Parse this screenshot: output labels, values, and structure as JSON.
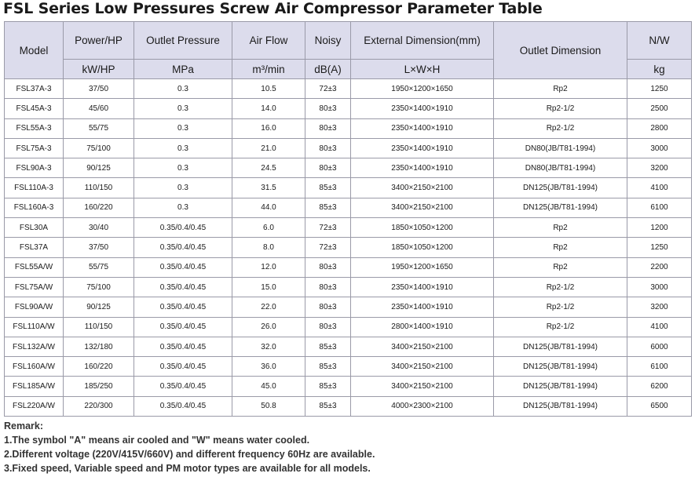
{
  "title": "FSL Series Low Pressures Screw Air Compressor Parameter Table",
  "table": {
    "header_top": [
      "Model",
      "Power/HP",
      "Outlet Pressure",
      "Air Flow",
      "Noisy",
      "External Dimension(mm)",
      "Outlet Dimension",
      "N/W"
    ],
    "header_bottom": [
      "kW/HP",
      "MPa",
      "m³/min",
      "dB(A)",
      "L×W×H",
      "kg"
    ],
    "rows": [
      [
        "FSL37A-3",
        "37/50",
        "0.3",
        "10.5",
        "72±3",
        "1950×1200×1650",
        "Rp2",
        "1250"
      ],
      [
        "FSL45A-3",
        "45/60",
        "0.3",
        "14.0",
        "80±3",
        "2350×1400×1910",
        "Rp2-1/2",
        "2500"
      ],
      [
        "FSL55A-3",
        "55/75",
        "0.3",
        "16.0",
        "80±3",
        "2350×1400×1910",
        "Rp2-1/2",
        "2800"
      ],
      [
        "FSL75A-3",
        "75/100",
        "0.3",
        "21.0",
        "80±3",
        "2350×1400×1910",
        "DN80(JB/T81-1994)",
        "3000"
      ],
      [
        "FSL90A-3",
        "90/125",
        "0.3",
        "24.5",
        "80±3",
        "2350×1400×1910",
        "DN80(JB/T81-1994)",
        "3200"
      ],
      [
        "FSL110A-3",
        "110/150",
        "0.3",
        "31.5",
        "85±3",
        "3400×2150×2100",
        "DN125(JB/T81-1994)",
        "4100"
      ],
      [
        "FSL160A-3",
        "160/220",
        "0.3",
        "44.0",
        "85±3",
        "3400×2150×2100",
        "DN125(JB/T81-1994)",
        "6100"
      ],
      [
        "FSL30A",
        "30/40",
        "0.35/0.4/0.45",
        "6.0",
        "72±3",
        "1850×1050×1200",
        "Rp2",
        "1200"
      ],
      [
        "FSL37A",
        "37/50",
        "0.35/0.4/0.45",
        "8.0",
        "72±3",
        "1850×1050×1200",
        "Rp2",
        "1250"
      ],
      [
        "FSL55A/W",
        "55/75",
        "0.35/0.4/0.45",
        "12.0",
        "80±3",
        "1950×1200×1650",
        "Rp2",
        "2200"
      ],
      [
        "FSL75A/W",
        "75/100",
        "0.35/0.4/0.45",
        "15.0",
        "80±3",
        "2350×1400×1910",
        "Rp2-1/2",
        "3000"
      ],
      [
        "FSL90A/W",
        "90/125",
        "0.35/0.4/0.45",
        "22.0",
        "80±3",
        "2350×1400×1910",
        "Rp2-1/2",
        "3200"
      ],
      [
        "FSL110A/W",
        "110/150",
        "0.35/0.4/0.45",
        "26.0",
        "80±3",
        "2800×1400×1910",
        "Rp2-1/2",
        "4100"
      ],
      [
        "FSL132A/W",
        "132/180",
        "0.35/0.4/0.45",
        "32.0",
        "85±3",
        "3400×2150×2100",
        "DN125(JB/T81-1994)",
        "6000"
      ],
      [
        "FSL160A/W",
        "160/220",
        "0.35/0.4/0.45",
        "36.0",
        "85±3",
        "3400×2150×2100",
        "DN125(JB/T81-1994)",
        "6100"
      ],
      [
        "FSL185A/W",
        "185/250",
        "0.35/0.4/0.45",
        "45.0",
        "85±3",
        "3400×2150×2100",
        "DN125(JB/T81-1994)",
        "6200"
      ],
      [
        "FSL220A/W",
        "220/300",
        "0.35/0.4/0.45",
        "50.8",
        "85±3",
        "4000×2300×2100",
        "DN125(JB/T81-1994)",
        "6500"
      ]
    ]
  },
  "remarks": {
    "heading": "Remark:",
    "lines": [
      "1.The symbol \"A\" means air cooled and \"W\" means water cooled.",
      "2.Different voltage (220V/415V/660V) and different frequency 60Hz are available.",
      "3.Fixed speed, Variable speed and PM motor types are available for all models."
    ]
  }
}
